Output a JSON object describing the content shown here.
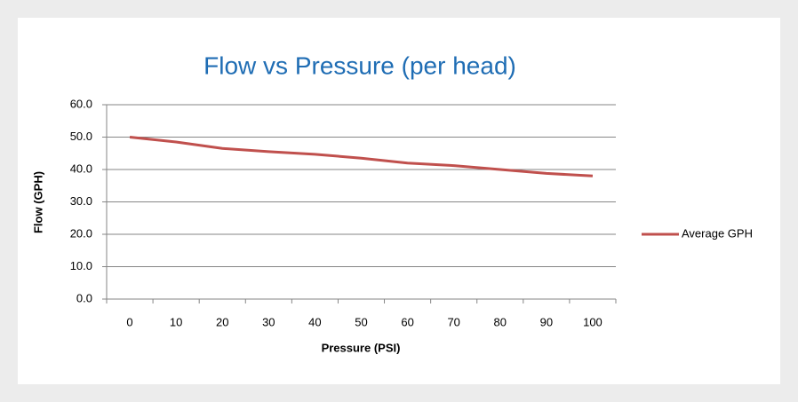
{
  "chart_data": {
    "type": "line",
    "title": "Flow vs Pressure (per head)",
    "x_label": "Pressure (PSI)",
    "y_label": "Flow (GPH)",
    "categories": [
      "0",
      "10",
      "20",
      "30",
      "40",
      "50",
      "60",
      "70",
      "80",
      "90",
      "100"
    ],
    "series": [
      {
        "name": "Average GPH",
        "color": "#c0504d",
        "values": [
          50,
          48.5,
          46.5,
          45.5,
          44.7,
          43.5,
          42,
          41.2,
          40,
          38.8,
          38
        ]
      }
    ],
    "ylim": [
      0,
      60
    ],
    "yticks": [
      {
        "value": 0,
        "label": "0.0"
      },
      {
        "value": 10,
        "label": "10.0"
      },
      {
        "value": 20,
        "label": "20.0"
      },
      {
        "value": 30,
        "label": "30.0"
      },
      {
        "value": 40,
        "label": "40.0"
      },
      {
        "value": 50,
        "label": "50.0"
      },
      {
        "value": 60,
        "label": "60.0"
      }
    ],
    "grid": true,
    "legend": "right"
  }
}
